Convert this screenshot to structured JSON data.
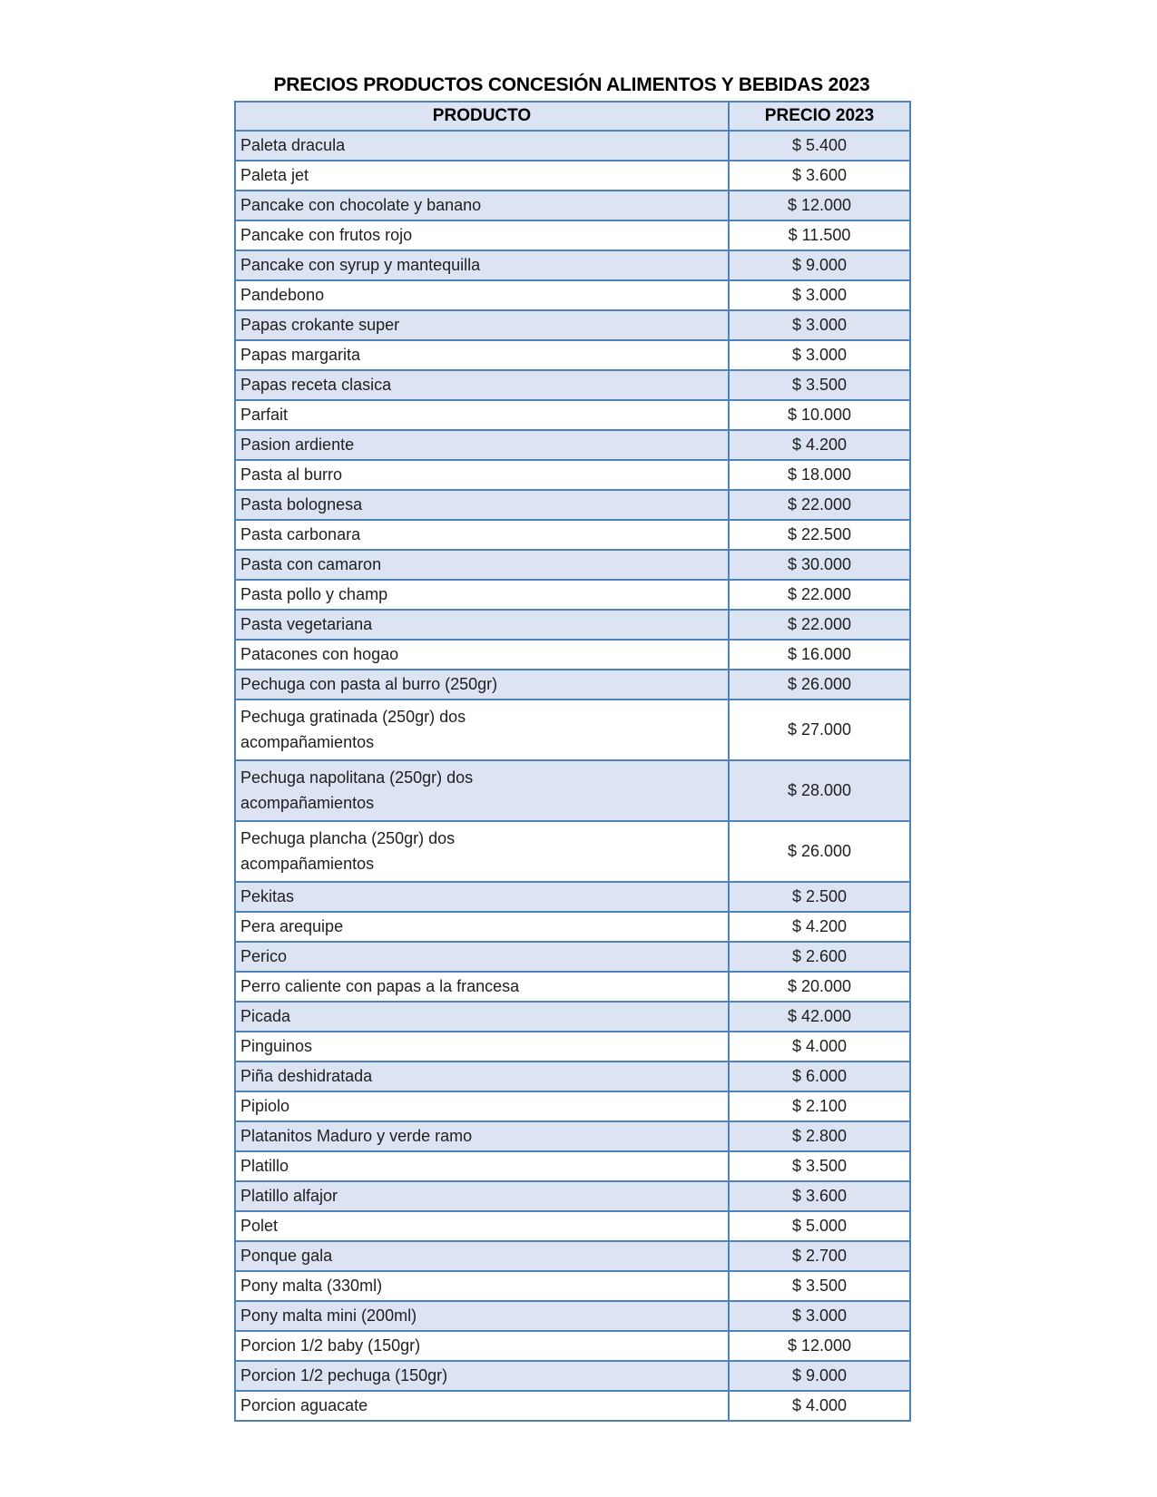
{
  "page": {
    "title": "PRECIOS PRODUCTOS CONCESIÓN ALIMENTOS Y BEBIDAS 2023"
  },
  "colors": {
    "accent_border": "#4F81BD",
    "band_fill": "#DCE3F2",
    "text": "#1F1F1F"
  },
  "table": {
    "columns": [
      "PRODUCTO",
      "PRECIO 2023"
    ],
    "rows": [
      {
        "product": "Paleta dracula",
        "price": "$ 5.400"
      },
      {
        "product": "Paleta jet",
        "price": "$ 3.600"
      },
      {
        "product": "Pancake con chocolate y banano",
        "price": "$ 12.000"
      },
      {
        "product": "Pancake con frutos rojo",
        "price": "$ 11.500"
      },
      {
        "product": "Pancake con syrup y mantequilla",
        "price": "$ 9.000"
      },
      {
        "product": "Pandebono",
        "price": "$ 3.000"
      },
      {
        "product": "Papas crokante super",
        "price": "$ 3.000"
      },
      {
        "product": "Papas margarita",
        "price": "$ 3.000"
      },
      {
        "product": "Papas receta clasica",
        "price": "$ 3.500"
      },
      {
        "product": "Parfait",
        "price": "$ 10.000"
      },
      {
        "product": "Pasion ardiente",
        "price": "$ 4.200"
      },
      {
        "product": "Pasta al burro",
        "price": "$ 18.000"
      },
      {
        "product": "Pasta bolognesa",
        "price": "$ 22.000"
      },
      {
        "product": "Pasta carbonara",
        "price": "$ 22.500"
      },
      {
        "product": "Pasta con camaron",
        "price": "$ 30.000"
      },
      {
        "product": "Pasta pollo y champ",
        "price": "$ 22.000"
      },
      {
        "product": "Pasta vegetariana",
        "price": "$ 22.000"
      },
      {
        "product": "Patacones con hogao",
        "price": "$ 16.000"
      },
      {
        "product": "Pechuga con pasta al burro (250gr)",
        "price": "$ 26.000"
      },
      {
        "product": "Pechuga gratinada (250gr) dos\nacompañamientos",
        "price": "$ 27.000"
      },
      {
        "product": "Pechuga napolitana (250gr) dos\nacompañamientos",
        "price": "$ 28.000"
      },
      {
        "product": "Pechuga plancha (250gr) dos\nacompañamientos",
        "price": "$ 26.000"
      },
      {
        "product": "Pekitas",
        "price": "$ 2.500"
      },
      {
        "product": "Pera arequipe",
        "price": "$ 4.200"
      },
      {
        "product": "Perico",
        "price": "$ 2.600"
      },
      {
        "product": "Perro caliente con papas a la francesa",
        "price": "$ 20.000"
      },
      {
        "product": "Picada",
        "price": "$ 42.000"
      },
      {
        "product": "Pinguinos",
        "price": "$ 4.000"
      },
      {
        "product": "Piña deshidratada",
        "price": "$ 6.000"
      },
      {
        "product": "Pipiolo",
        "price": "$ 2.100"
      },
      {
        "product": "Platanitos Maduro y verde ramo",
        "price": "$ 2.800"
      },
      {
        "product": "Platillo",
        "price": "$ 3.500"
      },
      {
        "product": "Platillo alfajor",
        "price": "$ 3.600"
      },
      {
        "product": "Polet",
        "price": "$ 5.000"
      },
      {
        "product": "Ponque gala",
        "price": "$ 2.700"
      },
      {
        "product": "Pony malta (330ml)",
        "price": "$ 3.500"
      },
      {
        "product": "Pony malta mini (200ml)",
        "price": "$ 3.000"
      },
      {
        "product": "Porcion 1/2 baby (150gr)",
        "price": "$ 12.000"
      },
      {
        "product": "Porcion 1/2 pechuga (150gr)",
        "price": "$ 9.000"
      },
      {
        "product": "Porcion aguacate",
        "price": "$ 4.000"
      }
    ]
  }
}
